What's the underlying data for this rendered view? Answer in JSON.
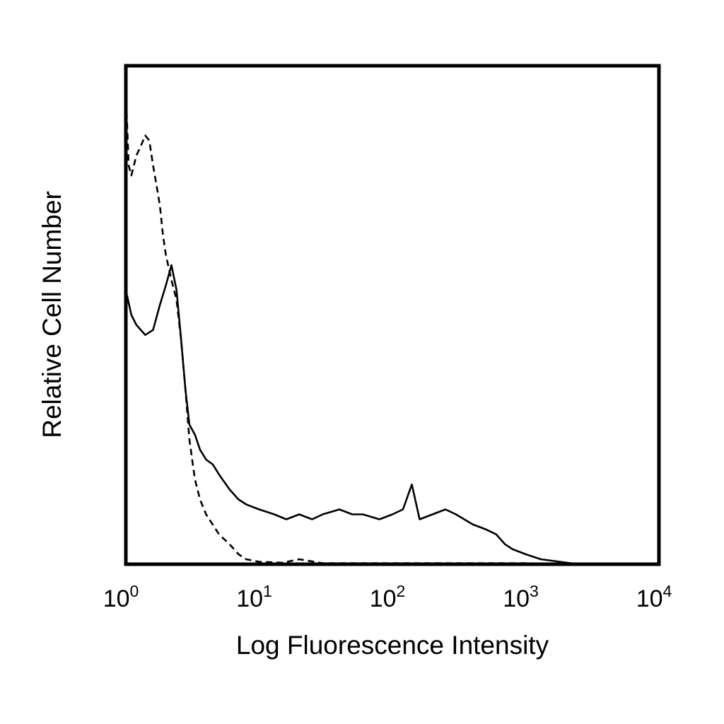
{
  "chart_data": {
    "type": "line",
    "title": "",
    "xlabel": "Log Fluorescence Intensity",
    "ylabel": "Relative Cell Number",
    "xscale": "log",
    "xlim": [
      1,
      10000
    ],
    "ylim": [
      0,
      100
    ],
    "grid": false,
    "legend": "none",
    "x_ticks": [
      {
        "value": 1,
        "base": "10",
        "exp": "0"
      },
      {
        "value": 10,
        "base": "10",
        "exp": "1"
      },
      {
        "value": 100,
        "base": "10",
        "exp": "2"
      },
      {
        "value": 1000,
        "base": "10",
        "exp": "3"
      },
      {
        "value": 10000,
        "base": "10",
        "exp": "4"
      }
    ],
    "series": [
      {
        "style": "solid",
        "color": "#000000",
        "points": [
          [
            1.0,
            55
          ],
          [
            1.1,
            50
          ],
          [
            1.2,
            48
          ],
          [
            1.4,
            46
          ],
          [
            1.6,
            47
          ],
          [
            1.8,
            52
          ],
          [
            2.0,
            56
          ],
          [
            2.2,
            60
          ],
          [
            2.4,
            55
          ],
          [
            2.6,
            45
          ],
          [
            2.8,
            35
          ],
          [
            3.0,
            28
          ],
          [
            3.3,
            26
          ],
          [
            3.6,
            23
          ],
          [
            4.0,
            21
          ],
          [
            4.5,
            20
          ],
          [
            5.0,
            18
          ],
          [
            6.0,
            15
          ],
          [
            7.0,
            13
          ],
          [
            8.0,
            12
          ],
          [
            10,
            11
          ],
          [
            13,
            10
          ],
          [
            16,
            9
          ],
          [
            20,
            10
          ],
          [
            25,
            9
          ],
          [
            30,
            10
          ],
          [
            40,
            11
          ],
          [
            50,
            10
          ],
          [
            60,
            10
          ],
          [
            80,
            9
          ],
          [
            100,
            10
          ],
          [
            120,
            11
          ],
          [
            140,
            16
          ],
          [
            160,
            9
          ],
          [
            200,
            10
          ],
          [
            250,
            11
          ],
          [
            300,
            10
          ],
          [
            400,
            8
          ],
          [
            500,
            7
          ],
          [
            600,
            6
          ],
          [
            700,
            4
          ],
          [
            800,
            3
          ],
          [
            1000,
            2
          ],
          [
            1300,
            1
          ],
          [
            1800,
            0.5
          ],
          [
            2500,
            0
          ]
        ]
      },
      {
        "style": "dashed",
        "color": "#000000",
        "points": [
          [
            1.0,
            95
          ],
          [
            1.05,
            80
          ],
          [
            1.1,
            78
          ],
          [
            1.2,
            82
          ],
          [
            1.3,
            84
          ],
          [
            1.4,
            86
          ],
          [
            1.5,
            85
          ],
          [
            1.6,
            80
          ],
          [
            1.7,
            76
          ],
          [
            1.8,
            72
          ],
          [
            1.9,
            66
          ],
          [
            2.0,
            62
          ],
          [
            2.2,
            57
          ],
          [
            2.4,
            53
          ],
          [
            2.6,
            45
          ],
          [
            2.8,
            35
          ],
          [
            3.0,
            25
          ],
          [
            3.3,
            17
          ],
          [
            3.6,
            13
          ],
          [
            4.0,
            10
          ],
          [
            5.0,
            6
          ],
          [
            6.0,
            4
          ],
          [
            7.0,
            2
          ],
          [
            8.0,
            1
          ],
          [
            10,
            0.5
          ],
          [
            15,
            0.3
          ],
          [
            20,
            1
          ],
          [
            30,
            0.2
          ],
          [
            100,
            0.2
          ],
          [
            1000,
            0.2
          ],
          [
            2500,
            0
          ]
        ]
      }
    ]
  }
}
